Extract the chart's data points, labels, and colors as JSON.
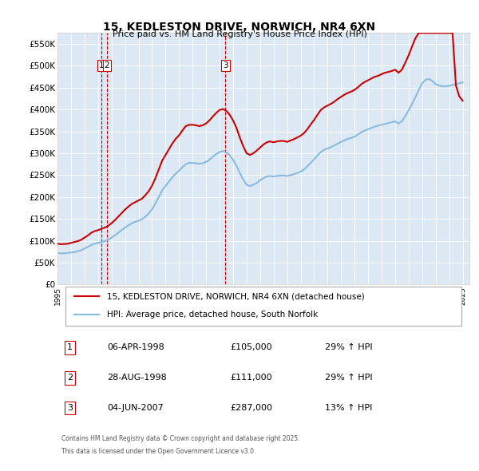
{
  "title": "15, KEDLESTON DRIVE, NORWICH, NR4 6XN",
  "subtitle": "Price paid vs. HM Land Registry's House Price Index (HPI)",
  "bg_color": "#dce9f5",
  "plot_bg_color": "#dce9f5",
  "red_color": "#cc0000",
  "blue_color": "#88bbdd",
  "ylabel_color": "#000000",
  "ylim": [
    0,
    575000
  ],
  "yticks": [
    0,
    50000,
    100000,
    150000,
    200000,
    250000,
    300000,
    350000,
    400000,
    450000,
    500000,
    550000
  ],
  "ytick_labels": [
    "£0",
    "£50K",
    "£100K",
    "£150K",
    "£200K",
    "£250K",
    "£300K",
    "£350K",
    "£400K",
    "£450K",
    "£500K",
    "£550K"
  ],
  "legend_red_label": "15, KEDLESTON DRIVE, NORWICH, NR4 6XN (detached house)",
  "legend_blue_label": "HPI: Average price, detached house, South Norfolk",
  "footer1": "Contains HM Land Registry data © Crown copyright and database right 2025.",
  "footer2": "This data is licensed under the Open Government Licence v3.0.",
  "sale_markers": [
    {
      "num": 1,
      "date_x": 1998.27,
      "price": 105000,
      "label": "1"
    },
    {
      "num": 2,
      "date_x": 1998.66,
      "price": 111000,
      "label": "2"
    },
    {
      "num": 3,
      "date_x": 2007.43,
      "price": 287000,
      "label": "3"
    }
  ],
  "table_rows": [
    {
      "num": "1",
      "date": "06-APR-1998",
      "price": "£105,000",
      "pct": "29% ↑ HPI"
    },
    {
      "num": "2",
      "date": "28-AUG-1998",
      "price": "£111,000",
      "pct": "29% ↑ HPI"
    },
    {
      "num": "3",
      "date": "04-JUN-2007",
      "price": "£287,000",
      "pct": "13% ↑ HPI"
    }
  ],
  "hpi_data": {
    "x": [
      1995.0,
      1995.25,
      1995.5,
      1995.75,
      1996.0,
      1996.25,
      1996.5,
      1996.75,
      1997.0,
      1997.25,
      1997.5,
      1997.75,
      1998.0,
      1998.25,
      1998.5,
      1998.75,
      1999.0,
      1999.25,
      1999.5,
      1999.75,
      2000.0,
      2000.25,
      2000.5,
      2000.75,
      2001.0,
      2001.25,
      2001.5,
      2001.75,
      2002.0,
      2002.25,
      2002.5,
      2002.75,
      2003.0,
      2003.25,
      2003.5,
      2003.75,
      2004.0,
      2004.25,
      2004.5,
      2004.75,
      2005.0,
      2005.25,
      2005.5,
      2005.75,
      2006.0,
      2006.25,
      2006.5,
      2006.75,
      2007.0,
      2007.25,
      2007.5,
      2007.75,
      2008.0,
      2008.25,
      2008.5,
      2008.75,
      2009.0,
      2009.25,
      2009.5,
      2009.75,
      2010.0,
      2010.25,
      2010.5,
      2010.75,
      2011.0,
      2011.25,
      2011.5,
      2011.75,
      2012.0,
      2012.25,
      2012.5,
      2012.75,
      2013.0,
      2013.25,
      2013.5,
      2013.75,
      2014.0,
      2014.25,
      2014.5,
      2014.75,
      2015.0,
      2015.25,
      2015.5,
      2015.75,
      2016.0,
      2016.25,
      2016.5,
      2016.75,
      2017.0,
      2017.25,
      2017.5,
      2017.75,
      2018.0,
      2018.25,
      2018.5,
      2018.75,
      2019.0,
      2019.25,
      2019.5,
      2019.75,
      2020.0,
      2020.25,
      2020.5,
      2020.75,
      2021.0,
      2021.25,
      2021.5,
      2021.75,
      2022.0,
      2022.25,
      2022.5,
      2022.75,
      2023.0,
      2023.25,
      2023.5,
      2023.75,
      2024.0,
      2024.25,
      2024.5,
      2024.75,
      2025.0
    ],
    "y": [
      72000,
      71000,
      71500,
      72000,
      73000,
      74000,
      76000,
      78000,
      82000,
      86000,
      90000,
      93000,
      95000,
      97000,
      99000,
      102000,
      107000,
      112000,
      118000,
      124000,
      130000,
      135000,
      140000,
      143000,
      146000,
      149000,
      155000,
      162000,
      172000,
      185000,
      200000,
      215000,
      225000,
      235000,
      245000,
      253000,
      260000,
      268000,
      275000,
      278000,
      278000,
      277000,
      276000,
      277000,
      280000,
      285000,
      292000,
      298000,
      303000,
      305000,
      302000,
      295000,
      285000,
      272000,
      255000,
      240000,
      228000,
      225000,
      228000,
      232000,
      238000,
      243000,
      247000,
      248000,
      247000,
      248000,
      249000,
      249000,
      248000,
      250000,
      252000,
      255000,
      258000,
      263000,
      270000,
      278000,
      286000,
      295000,
      303000,
      308000,
      311000,
      314000,
      318000,
      322000,
      326000,
      330000,
      333000,
      335000,
      338000,
      343000,
      348000,
      352000,
      355000,
      358000,
      361000,
      363000,
      365000,
      367000,
      369000,
      371000,
      373000,
      368000,
      373000,
      385000,
      398000,
      413000,
      428000,
      445000,
      460000,
      468000,
      470000,
      465000,
      458000,
      455000,
      453000,
      453000,
      454000,
      456000,
      458000,
      460000,
      462000
    ]
  },
  "red_line_data": {
    "x": [
      1995.0,
      1995.25,
      1995.5,
      1995.75,
      1996.0,
      1996.25,
      1996.5,
      1996.75,
      1997.0,
      1997.25,
      1997.5,
      1997.75,
      1998.0,
      1998.25,
      1998.5,
      1998.75,
      1999.0,
      1999.25,
      1999.5,
      1999.75,
      2000.0,
      2000.25,
      2000.5,
      2000.75,
      2001.0,
      2001.25,
      2001.5,
      2001.75,
      2002.0,
      2002.25,
      2002.5,
      2002.75,
      2003.0,
      2003.25,
      2003.5,
      2003.75,
      2004.0,
      2004.25,
      2004.5,
      2004.75,
      2005.0,
      2005.25,
      2005.5,
      2005.75,
      2006.0,
      2006.25,
      2006.5,
      2006.75,
      2007.0,
      2007.25,
      2007.5,
      2007.75,
      2008.0,
      2008.25,
      2008.5,
      2008.75,
      2009.0,
      2009.25,
      2009.5,
      2009.75,
      2010.0,
      2010.25,
      2010.5,
      2010.75,
      2011.0,
      2011.25,
      2011.5,
      2011.75,
      2012.0,
      2012.25,
      2012.5,
      2012.75,
      2013.0,
      2013.25,
      2013.5,
      2013.75,
      2014.0,
      2014.25,
      2014.5,
      2014.75,
      2015.0,
      2015.25,
      2015.5,
      2015.75,
      2016.0,
      2016.25,
      2016.5,
      2016.75,
      2017.0,
      2017.25,
      2017.5,
      2017.75,
      2018.0,
      2018.25,
      2018.5,
      2018.75,
      2019.0,
      2019.25,
      2019.5,
      2019.75,
      2020.0,
      2020.25,
      2020.5,
      2020.75,
      2021.0,
      2021.25,
      2021.5,
      2021.75,
      2022.0,
      2022.25,
      2022.5,
      2022.75,
      2023.0,
      2023.25,
      2023.5,
      2023.75,
      2024.0,
      2024.25,
      2024.5,
      2024.75,
      2025.0
    ],
    "y": [
      93000,
      92000,
      92500,
      93000,
      95000,
      97000,
      99000,
      102000,
      107000,
      112000,
      118000,
      122000,
      124000,
      127000,
      130000,
      134000,
      140000,
      147000,
      155000,
      163000,
      171000,
      178000,
      184000,
      188000,
      192000,
      196000,
      204000,
      213000,
      226000,
      243000,
      263000,
      283000,
      296000,
      309000,
      322000,
      333000,
      341000,
      352000,
      362000,
      365000,
      365000,
      364000,
      362000,
      364000,
      368000,
      375000,
      384000,
      392000,
      399000,
      401000,
      397000,
      388000,
      375000,
      358000,
      336000,
      316000,
      300000,
      296000,
      300000,
      306000,
      313000,
      320000,
      325000,
      327000,
      325000,
      327000,
      328000,
      328000,
      326000,
      329000,
      332000,
      336000,
      340000,
      346000,
      355000,
      366000,
      376000,
      388000,
      399000,
      405000,
      409000,
      413000,
      418000,
      424000,
      429000,
      434000,
      438000,
      441000,
      445000,
      451000,
      458000,
      463000,
      467000,
      471000,
      475000,
      477000,
      481000,
      484000,
      486000,
      488000,
      491000,
      484000,
      491000,
      507000,
      524000,
      544000,
      563000,
      586000,
      605000,
      616000,
      618000,
      612000,
      602000,
      599000,
      596000,
      596000,
      598000,
      600000,
      455000,
      430000,
      420000
    ]
  },
  "vline_dates": [
    1998.27,
    1998.66,
    2007.43
  ],
  "xlim": [
    1995.0,
    2025.5
  ],
  "xticks": [
    1995,
    1996,
    1997,
    1998,
    1999,
    2000,
    2001,
    2002,
    2003,
    2004,
    2005,
    2006,
    2007,
    2008,
    2009,
    2010,
    2011,
    2012,
    2013,
    2014,
    2015,
    2016,
    2017,
    2018,
    2019,
    2020,
    2021,
    2022,
    2023,
    2024,
    2025
  ]
}
